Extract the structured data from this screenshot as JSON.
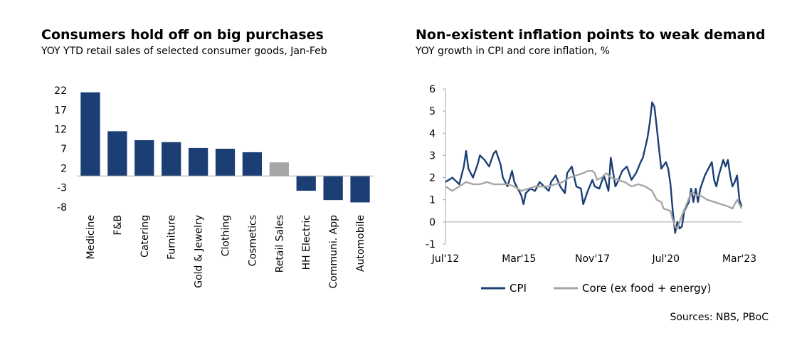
{
  "colors": {
    "navy": "#1b3f75",
    "gray": "#a6a6a6",
    "axis": "#a6a6a6"
  },
  "left": {
    "title": "Consumers hold off on big purchases",
    "subtitle": "YOY YTD retail sales of selected consumer goods, Jan-Feb"
  },
  "right": {
    "title": "Non-existent inflation points to weak demand",
    "subtitle": "YOY growth in CPI and core inflation, %",
    "sources": "Sources: NBS, PBoC"
  },
  "chart_data": [
    {
      "type": "bar",
      "title": "Consumers hold off on big purchases",
      "subtitle": "YOY YTD retail sales of selected consumer goods, Jan-Feb",
      "categories": [
        "Medicine",
        "F&B",
        "Catering",
        "Furniture",
        "Gold & Jewelry",
        "Clothing",
        "Cosmetics",
        "Retail Sales",
        "HH Electric",
        "Communi. App",
        "Automobile"
      ],
      "values": [
        21.5,
        11.5,
        9.2,
        8.7,
        7.2,
        7.0,
        6.1,
        3.5,
        -3.8,
        -6.2,
        -6.8
      ],
      "highlight": "Retail Sales",
      "yticks": [
        "22",
        "17",
        "12",
        "7",
        "2",
        "-3",
        "-8"
      ],
      "ylim": [
        -8,
        22
      ]
    },
    {
      "type": "line",
      "title": "Non-existent inflation points to weak demand",
      "subtitle": "YOY growth in CPI and core inflation, %",
      "xticks": [
        "Jul'12",
        "Mar'15",
        "Nov'17",
        "Jul'20",
        "Mar'23"
      ],
      "xtick_pos": [
        0,
        32,
        64,
        96,
        128
      ],
      "yticks": [
        "-1",
        "0",
        "1",
        "2",
        "3",
        "4",
        "5",
        "6"
      ],
      "ylim": [
        -1,
        6
      ],
      "series": [
        {
          "name": "CPI",
          "color": "#1b3f75",
          "points": [
            [
              0,
              1.8
            ],
            [
              3,
              2.0
            ],
            [
              6,
              1.7
            ],
            [
              8,
              2.5
            ],
            [
              9,
              3.2
            ],
            [
              10,
              2.4
            ],
            [
              12,
              2.0
            ],
            [
              14,
              2.6
            ],
            [
              15,
              3.0
            ],
            [
              17,
              2.8
            ],
            [
              19,
              2.5
            ],
            [
              21,
              3.1
            ],
            [
              22,
              3.2
            ],
            [
              24,
              2.6
            ],
            [
              25,
              2.0
            ],
            [
              27,
              1.6
            ],
            [
              29,
              2.3
            ],
            [
              30,
              1.8
            ],
            [
              32,
              1.4
            ],
            [
              33,
              1.2
            ],
            [
              34,
              0.8
            ],
            [
              35,
              1.3
            ],
            [
              37,
              1.5
            ],
            [
              39,
              1.4
            ],
            [
              41,
              1.8
            ],
            [
              43,
              1.6
            ],
            [
              45,
              1.4
            ],
            [
              46,
              1.8
            ],
            [
              48,
              2.1
            ],
            [
              50,
              1.6
            ],
            [
              52,
              1.3
            ],
            [
              53,
              2.2
            ],
            [
              55,
              2.5
            ],
            [
              57,
              1.6
            ],
            [
              59,
              1.5
            ],
            [
              60,
              0.8
            ],
            [
              62,
              1.4
            ],
            [
              64,
              1.9
            ],
            [
              65,
              1.6
            ],
            [
              67,
              1.5
            ],
            [
              69,
              2.1
            ],
            [
              71,
              1.4
            ],
            [
              72,
              2.9
            ],
            [
              74,
              1.6
            ],
            [
              75,
              1.8
            ],
            [
              77,
              2.3
            ],
            [
              79,
              2.5
            ],
            [
              81,
              1.9
            ],
            [
              83,
              2.2
            ],
            [
              85,
              2.7
            ],
            [
              86,
              2.9
            ],
            [
              88,
              3.8
            ],
            [
              89,
              4.5
            ],
            [
              90,
              5.4
            ],
            [
              91,
              5.2
            ],
            [
              92,
              4.3
            ],
            [
              93,
              3.3
            ],
            [
              94,
              2.4
            ],
            [
              96,
              2.7
            ],
            [
              97,
              2.4
            ],
            [
              98,
              1.7
            ],
            [
              99,
              0.5
            ],
            [
              100,
              -0.5
            ],
            [
              101,
              0.0
            ],
            [
              102,
              -0.3
            ],
            [
              103,
              -0.2
            ],
            [
              104,
              0.5
            ],
            [
              106,
              0.9
            ],
            [
              107,
              1.5
            ],
            [
              108,
              0.9
            ],
            [
              109,
              1.5
            ],
            [
              110,
              0.9
            ],
            [
              111,
              1.5
            ],
            [
              113,
              2.1
            ],
            [
              114,
              2.3
            ],
            [
              115,
              2.5
            ],
            [
              116,
              2.7
            ],
            [
              117,
              1.9
            ],
            [
              118,
              1.6
            ],
            [
              119,
              2.1
            ],
            [
              121,
              2.8
            ],
            [
              122,
              2.5
            ],
            [
              123,
              2.8
            ],
            [
              124,
              2.1
            ],
            [
              125,
              1.6
            ],
            [
              126,
              1.8
            ],
            [
              127,
              2.1
            ],
            [
              128,
              1.0
            ],
            [
              129,
              0.7
            ]
          ]
        },
        {
          "name": "Core (ex food + energy)",
          "color": "#a6a6a6",
          "points": [
            [
              0,
              1.6
            ],
            [
              3,
              1.4
            ],
            [
              6,
              1.6
            ],
            [
              9,
              1.8
            ],
            [
              12,
              1.7
            ],
            [
              15,
              1.7
            ],
            [
              18,
              1.8
            ],
            [
              21,
              1.7
            ],
            [
              24,
              1.7
            ],
            [
              27,
              1.7
            ],
            [
              30,
              1.6
            ],
            [
              33,
              1.4
            ],
            [
              36,
              1.5
            ],
            [
              39,
              1.6
            ],
            [
              42,
              1.6
            ],
            [
              45,
              1.6
            ],
            [
              48,
              1.7
            ],
            [
              51,
              1.8
            ],
            [
              54,
              2.0
            ],
            [
              57,
              2.1
            ],
            [
              60,
              2.2
            ],
            [
              62,
              2.3
            ],
            [
              64,
              2.3
            ],
            [
              65,
              2.2
            ],
            [
              66,
              1.9
            ],
            [
              68,
              2.0
            ],
            [
              70,
              2.2
            ],
            [
              72,
              2.0
            ],
            [
              75,
              1.9
            ],
            [
              78,
              1.8
            ],
            [
              81,
              1.6
            ],
            [
              84,
              1.7
            ],
            [
              87,
              1.6
            ],
            [
              90,
              1.4
            ],
            [
              92,
              1.0
            ],
            [
              94,
              0.9
            ],
            [
              95,
              0.6
            ],
            [
              98,
              0.5
            ],
            [
              99,
              0.1
            ],
            [
              100,
              -0.2
            ],
            [
              101,
              -0.3
            ],
            [
              103,
              0.3
            ],
            [
              105,
              0.8
            ],
            [
              107,
              1.3
            ],
            [
              108,
              1.3
            ],
            [
              109,
              1.2
            ],
            [
              111,
              1.2
            ],
            [
              114,
              1.0
            ],
            [
              117,
              0.9
            ],
            [
              120,
              0.8
            ],
            [
              123,
              0.7
            ],
            [
              125,
              0.6
            ],
            [
              127,
              1.0
            ],
            [
              128,
              0.8
            ],
            [
              129,
              0.6
            ]
          ]
        }
      ],
      "legend": [
        "CPI",
        "Core (ex food + energy)"
      ]
    }
  ]
}
